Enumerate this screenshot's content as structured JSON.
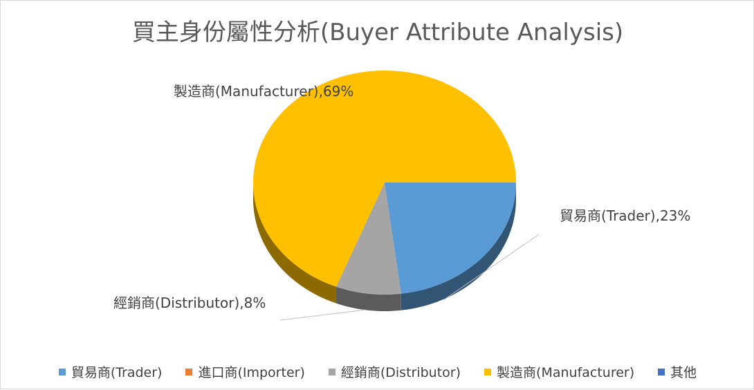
{
  "chart_data": {
    "type": "pie",
    "title": "買主身份屬性分析(Buyer Attribute Analysis)",
    "categories": [
      "貿易商(Trader)",
      "進口商(Importer)",
      "經銷商(Distributor)",
      "製造商(Manufacturer)",
      "其他"
    ],
    "values": [
      23,
      0,
      8,
      69,
      0
    ],
    "unit": "%",
    "colors": [
      "#5b9bd5",
      "#ed7d31",
      "#a5a5a5",
      "#ffc000",
      "#4472c4"
    ],
    "data_labels": [
      "貿易商(Trader),23%",
      "",
      "經銷商(Distributor),8%",
      "製造商(Manufacturer),69%",
      ""
    ],
    "legend_position": "bottom",
    "style": "3d-pie"
  }
}
